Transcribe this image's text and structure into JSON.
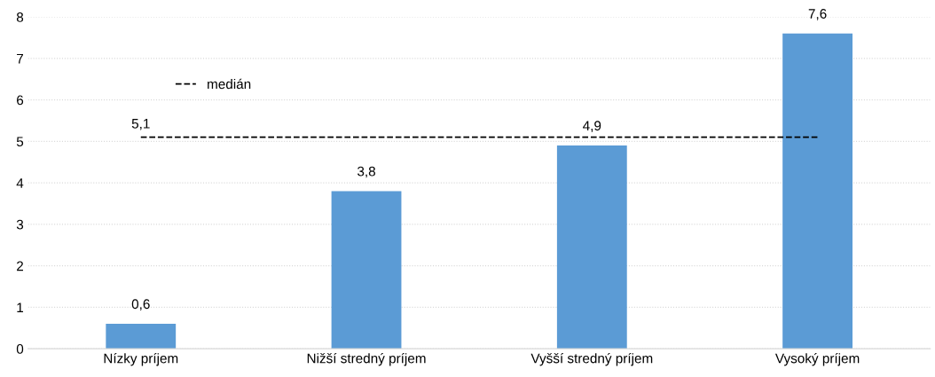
{
  "chart_data": {
    "type": "bar",
    "categories": [
      "Nízky príjem",
      "Nižší stredný príjem",
      "Vyšší stredný príjem",
      "Vysoký príjem"
    ],
    "series": [
      {
        "color": "#5b9bd5",
        "values": [
          0.6,
          3.8,
          4.9,
          7.6
        ],
        "value_labels": [
          "0,6",
          "3,8",
          "4,9",
          "7,6"
        ]
      },
      {
        "type": "line",
        "name": "medián",
        "color": "#000000",
        "line_style": "dashed",
        "marker": "none",
        "values": [
          5.1,
          5.1,
          5.1,
          5.1
        ],
        "value_labels": [
          "5,1",
          null,
          null,
          null
        ]
      }
    ],
    "ylim": [
      0,
      8
    ],
    "yticks": [
      0,
      1,
      2,
      3,
      4,
      5,
      6,
      7,
      8
    ],
    "grid": "y",
    "legend": "top left"
  }
}
